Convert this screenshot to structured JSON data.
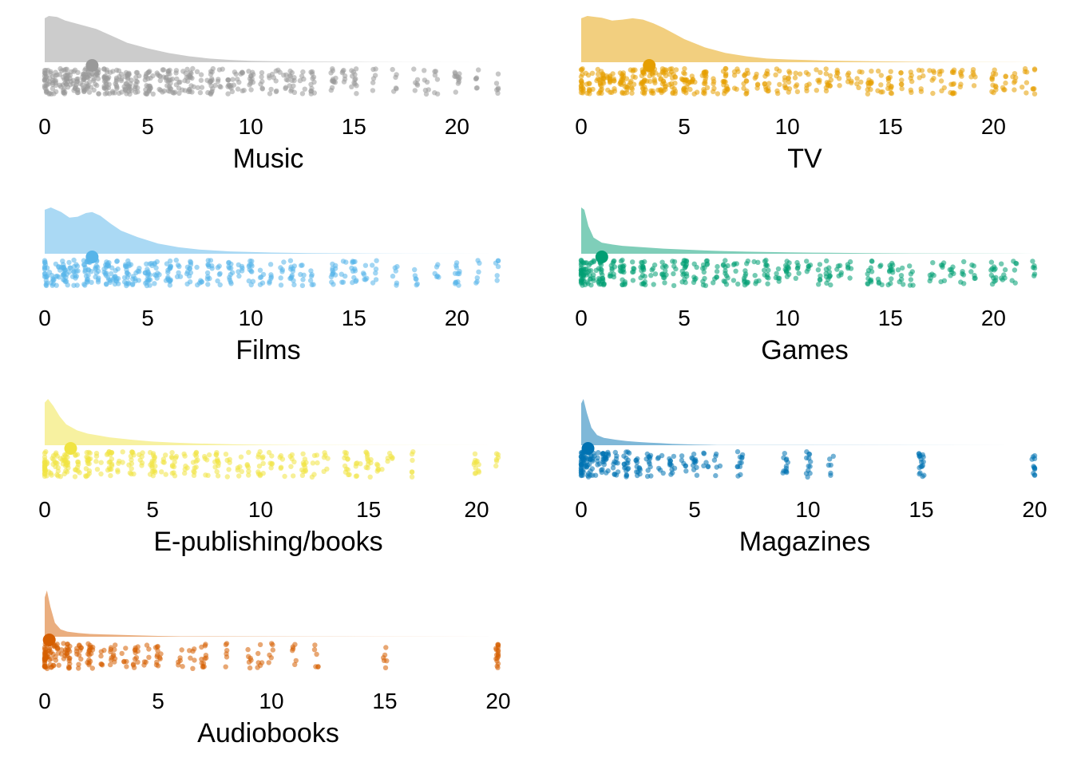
{
  "chart_data": [
    {
      "type": "raincloud",
      "xlabel": "Music",
      "color": "#999999",
      "xlim": [
        0,
        22
      ],
      "xticks": [
        0,
        5,
        10,
        15,
        20
      ],
      "median": 2.3,
      "density": [
        [
          0,
          0.95
        ],
        [
          0.2,
          1.0
        ],
        [
          0.6,
          0.98
        ],
        [
          1.0,
          0.9
        ],
        [
          1.5,
          0.84
        ],
        [
          2.0,
          0.78
        ],
        [
          2.5,
          0.72
        ],
        [
          3.0,
          0.62
        ],
        [
          3.5,
          0.52
        ],
        [
          4.0,
          0.42
        ],
        [
          5.0,
          0.3
        ],
        [
          6.0,
          0.2
        ],
        [
          7.0,
          0.13
        ],
        [
          8.0,
          0.08
        ],
        [
          9.0,
          0.05
        ],
        [
          10.0,
          0.03
        ],
        [
          12.0,
          0.015
        ],
        [
          14.0,
          0.01
        ],
        [
          16.0,
          0.004
        ],
        [
          22,
          0.0
        ]
      ],
      "points": [
        0,
        0,
        0,
        0.2,
        0.3,
        0.5,
        0.5,
        0.7,
        1,
        1,
        1,
        1,
        1.2,
        1.5,
        1.5,
        1.5,
        1.8,
        2,
        2,
        2,
        2,
        2.2,
        2.5,
        2.5,
        2.5,
        3,
        3,
        3,
        3,
        3.2,
        3.5,
        3.5,
        3.8,
        4,
        4,
        4,
        4.2,
        4.5,
        4.5,
        5,
        5,
        5,
        5.2,
        5.5,
        5.7,
        6,
        6,
        6,
        6.3,
        6.5,
        6.8,
        7,
        7,
        7.2,
        7.5,
        8,
        8,
        8.2,
        8.5,
        9,
        9,
        9.3,
        9.6,
        10,
        10,
        10.5,
        11,
        11.3,
        11.7,
        12,
        12,
        12.5,
        13,
        13,
        14,
        14,
        14.5,
        15,
        15,
        16,
        17,
        18,
        18.5,
        19,
        20,
        20,
        21,
        22
      ]
    },
    {
      "type": "raincloud",
      "xlabel": "TV",
      "color": "#E69F00",
      "xlim": [
        0,
        22
      ],
      "xticks": [
        0,
        5,
        10,
        15,
        20
      ],
      "median": 3.3,
      "density": [
        [
          0,
          0.95
        ],
        [
          0.3,
          1.0
        ],
        [
          1.0,
          0.96
        ],
        [
          1.5,
          0.9
        ],
        [
          2.0,
          0.92
        ],
        [
          2.5,
          0.95
        ],
        [
          3.0,
          0.92
        ],
        [
          3.5,
          0.84
        ],
        [
          4.0,
          0.74
        ],
        [
          4.5,
          0.62
        ],
        [
          5.0,
          0.5
        ],
        [
          6.0,
          0.32
        ],
        [
          7.0,
          0.2
        ],
        [
          8.0,
          0.13
        ],
        [
          9.0,
          0.08
        ],
        [
          10.0,
          0.06
        ],
        [
          12.0,
          0.035
        ],
        [
          14.0,
          0.02
        ],
        [
          16.0,
          0.01
        ],
        [
          18.0,
          0.006
        ],
        [
          22,
          0.0
        ]
      ],
      "points": [
        0,
        0,
        0,
        0.3,
        0.5,
        0.8,
        1,
        1,
        1,
        1.3,
        1.5,
        1.5,
        2,
        2,
        2,
        2.2,
        2.5,
        2.5,
        3,
        3,
        3,
        3,
        3.3,
        3.5,
        3.5,
        3.8,
        4,
        4,
        4,
        4.3,
        4.5,
        4.5,
        5,
        5,
        5,
        5.3,
        5.5,
        6,
        6,
        6,
        6.5,
        7,
        7,
        7,
        7.5,
        8,
        8,
        8.5,
        9,
        9,
        9.5,
        10,
        10,
        10.5,
        11,
        11.5,
        12,
        12,
        12.5,
        13,
        13.5,
        14,
        14,
        14.5,
        15,
        15,
        15.5,
        16,
        16.5,
        17,
        17.5,
        18,
        18,
        18.5,
        19,
        20,
        20,
        20.5,
        21,
        21.5,
        22
      ]
    },
    {
      "type": "raincloud",
      "xlabel": "Films",
      "color": "#56B4E9",
      "xlim": [
        0,
        22
      ],
      "xticks": [
        0,
        5,
        10,
        15,
        20
      ],
      "median": 2.3,
      "density": [
        [
          0,
          0.95
        ],
        [
          0.3,
          1.0
        ],
        [
          0.8,
          0.9
        ],
        [
          1.2,
          0.78
        ],
        [
          1.6,
          0.8
        ],
        [
          2.0,
          0.88
        ],
        [
          2.3,
          0.9
        ],
        [
          2.7,
          0.82
        ],
        [
          3.2,
          0.65
        ],
        [
          3.7,
          0.5
        ],
        [
          4.5,
          0.36
        ],
        [
          5.5,
          0.22
        ],
        [
          6.5,
          0.14
        ],
        [
          7.5,
          0.09
        ],
        [
          9.0,
          0.05
        ],
        [
          11.0,
          0.025
        ],
        [
          13.0,
          0.012
        ],
        [
          16.0,
          0.004
        ],
        [
          22,
          0.0
        ]
      ],
      "points": [
        0,
        0,
        0,
        0.3,
        0.5,
        0.8,
        1,
        1,
        1,
        1.3,
        1.5,
        1.5,
        2,
        2,
        2,
        2.2,
        2.5,
        2.5,
        3,
        3,
        3,
        3.3,
        3.5,
        3.5,
        4,
        4,
        4,
        4.3,
        4.5,
        5,
        5,
        5,
        5.3,
        5.5,
        6,
        6,
        6,
        6.5,
        7,
        7,
        7.5,
        8,
        8,
        8.5,
        9,
        9,
        9.5,
        10,
        10,
        10.5,
        11,
        11.5,
        12,
        12,
        12.5,
        13,
        14,
        14,
        14.5,
        15,
        15,
        15.5,
        16,
        17,
        18,
        19,
        20,
        20,
        21,
        22
      ]
    },
    {
      "type": "raincloud",
      "xlabel": "Games",
      "color": "#009E73",
      "xlim": [
        0,
        22
      ],
      "xticks": [
        0,
        5,
        10,
        15,
        20
      ],
      "median": 1.0,
      "density": [
        [
          0,
          1.0
        ],
        [
          0.15,
          0.95
        ],
        [
          0.35,
          0.6
        ],
        [
          0.6,
          0.35
        ],
        [
          1.0,
          0.24
        ],
        [
          1.5,
          0.2
        ],
        [
          2.0,
          0.17
        ],
        [
          3.0,
          0.14
        ],
        [
          4.0,
          0.11
        ],
        [
          5.0,
          0.09
        ],
        [
          6.0,
          0.07
        ],
        [
          7.0,
          0.055
        ],
        [
          8.0,
          0.045
        ],
        [
          10.0,
          0.03
        ],
        [
          12.0,
          0.02
        ],
        [
          14.0,
          0.012
        ],
        [
          16.0,
          0.007
        ],
        [
          22,
          0.0
        ]
      ],
      "points": [
        0,
        0,
        0,
        0,
        0,
        0.2,
        0.3,
        0.5,
        0.5,
        0.8,
        1,
        1,
        1,
        1.5,
        1.5,
        2,
        2,
        2,
        2.5,
        3,
        3,
        3,
        3.5,
        4,
        4,
        4.5,
        5,
        5,
        5,
        5.5,
        6,
        6,
        6.5,
        7,
        7,
        7.5,
        8,
        8,
        8.5,
        9,
        9,
        9.5,
        10,
        10,
        10.5,
        11,
        11.5,
        12,
        12,
        12.5,
        13,
        14,
        14,
        14.5,
        15,
        15,
        15.5,
        16,
        17,
        17.5,
        18,
        18.5,
        19,
        20,
        20,
        20.5,
        21,
        22
      ]
    },
    {
      "type": "raincloud",
      "xlabel": "E-publishing/books",
      "color": "#F0E442",
      "xlim": [
        0,
        21
      ],
      "xticks": [
        0,
        5,
        10,
        15,
        20
      ],
      "median": 1.2,
      "density": [
        [
          0,
          0.92
        ],
        [
          0.15,
          1.0
        ],
        [
          0.4,
          0.85
        ],
        [
          0.7,
          0.62
        ],
        [
          1.0,
          0.45
        ],
        [
          1.5,
          0.32
        ],
        [
          2.0,
          0.25
        ],
        [
          3.0,
          0.17
        ],
        [
          4.0,
          0.12
        ],
        [
          5.0,
          0.08
        ],
        [
          6.0,
          0.055
        ],
        [
          7.0,
          0.04
        ],
        [
          8.0,
          0.028
        ],
        [
          9.0,
          0.018
        ],
        [
          10.0,
          0.01
        ],
        [
          12.0,
          0.004
        ],
        [
          21,
          0.0
        ]
      ],
      "points": [
        0,
        0,
        0,
        0,
        0.3,
        0.5,
        0.5,
        0.8,
        1,
        1,
        1,
        1.5,
        1.5,
        2,
        2,
        2,
        2.5,
        3,
        3,
        3,
        3.5,
        4,
        4,
        4.5,
        5,
        5,
        5,
        5.5,
        6,
        6,
        6.5,
        7,
        7,
        7.5,
        8,
        8,
        8.5,
        9,
        9.5,
        10,
        10,
        10.5,
        11,
        11.5,
        12,
        12,
        12.5,
        13,
        14,
        14,
        14.5,
        15,
        15,
        15.5,
        16,
        17,
        20,
        20,
        21
      ]
    },
    {
      "type": "raincloud",
      "xlabel": "Magazines",
      "color": "#0072B2",
      "xlim": [
        0,
        20
      ],
      "xticks": [
        0,
        5,
        10,
        15,
        20
      ],
      "median": 0.3,
      "density": [
        [
          0,
          0.9
        ],
        [
          0.1,
          1.0
        ],
        [
          0.25,
          0.7
        ],
        [
          0.45,
          0.38
        ],
        [
          0.7,
          0.22
        ],
        [
          1.0,
          0.16
        ],
        [
          1.5,
          0.12
        ],
        [
          2.0,
          0.09
        ],
        [
          2.5,
          0.07
        ],
        [
          3.0,
          0.055
        ],
        [
          3.5,
          0.045
        ],
        [
          4.0,
          0.03
        ],
        [
          5.0,
          0.015
        ],
        [
          6.0,
          0.006
        ],
        [
          20,
          0.0
        ]
      ],
      "points": [
        0,
        0,
        0,
        0,
        0,
        0.1,
        0.2,
        0.3,
        0.3,
        0.5,
        0.5,
        0.7,
        1,
        1,
        1,
        1.2,
        1.5,
        1.5,
        2,
        2,
        2,
        2.5,
        2.5,
        3,
        3,
        3.5,
        4,
        4,
        4.5,
        5,
        5,
        5.5,
        6,
        7,
        7,
        9,
        9,
        10,
        10,
        11,
        15,
        15,
        15,
        20,
        20
      ]
    },
    {
      "type": "raincloud",
      "xlabel": "Audiobooks",
      "color": "#D55E00",
      "xlim": [
        0,
        20
      ],
      "xticks": [
        0,
        5,
        10,
        15,
        20
      ],
      "median": 0.2,
      "density": [
        [
          0,
          0.85
        ],
        [
          0.1,
          1.0
        ],
        [
          0.25,
          0.65
        ],
        [
          0.45,
          0.3
        ],
        [
          0.7,
          0.16
        ],
        [
          1.0,
          0.11
        ],
        [
          1.5,
          0.08
        ],
        [
          2.0,
          0.06
        ],
        [
          3.0,
          0.045
        ],
        [
          4.0,
          0.03
        ],
        [
          5.0,
          0.018
        ],
        [
          6.0,
          0.008
        ],
        [
          20,
          0.0
        ]
      ],
      "points": [
        0,
        0,
        0,
        0,
        0,
        0.1,
        0.2,
        0.3,
        0.5,
        0.5,
        0.8,
        1,
        1,
        1,
        1.5,
        1.5,
        2,
        2,
        2,
        2.5,
        3,
        3,
        3.5,
        4,
        4,
        4.5,
        5,
        5,
        6,
        6.5,
        7,
        7,
        8,
        9,
        9.5,
        10,
        11,
        12,
        15,
        20,
        20,
        20
      ]
    }
  ]
}
